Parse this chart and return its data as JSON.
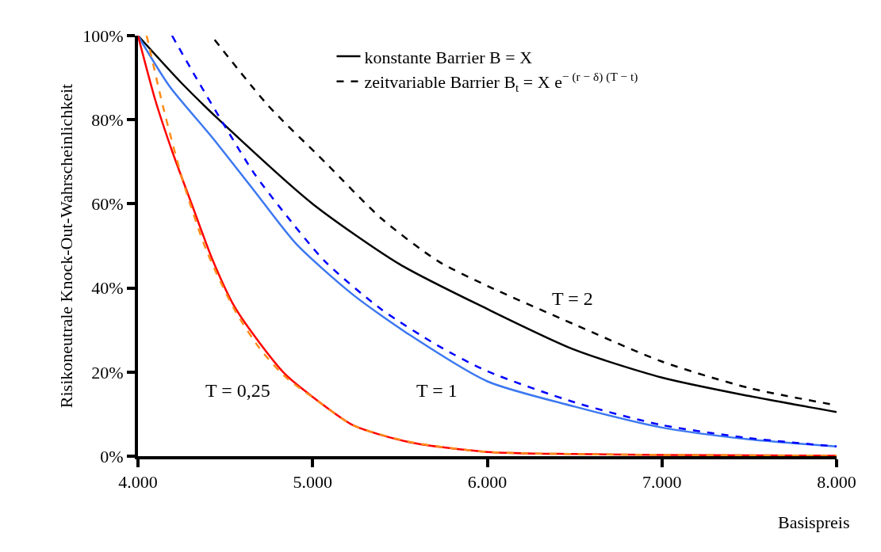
{
  "chart_data": {
    "type": "line",
    "xlabel": "Basispreis",
    "ylabel": "Risikoneutrale Knock-Out-Wahrscheinlichkeit",
    "xlim": [
      4000,
      8000
    ],
    "xticks": [
      {
        "value": 4000,
        "label": "4.000"
      },
      {
        "value": 5000,
        "label": "5.000"
      },
      {
        "value": 6000,
        "label": "6.000"
      },
      {
        "value": 7000,
        "label": "7.000"
      },
      {
        "value": 8000,
        "label": "8.000"
      }
    ],
    "ylim": [
      0,
      100
    ],
    "yticks": [
      {
        "value": 0,
        "label": "0%"
      },
      {
        "value": 20,
        "label": "20%"
      },
      {
        "value": 40,
        "label": "40%"
      },
      {
        "value": 60,
        "label": "60%"
      },
      {
        "value": 80,
        "label": "80%"
      },
      {
        "value": 100,
        "label": "100%"
      }
    ],
    "grid": false,
    "legend": "top",
    "marker": "none",
    "series": [
      {
        "name": "konstante Barrier B = X",
        "color": "#000000",
        "line_style": "solid",
        "x": [
          4000,
          4250,
          4500,
          5000,
          5500,
          6000,
          6500,
          7000,
          7500,
          8000
        ],
        "values": [
          100,
          88.7,
          78.6,
          60,
          45.6,
          35,
          25.3,
          18.7,
          14.3,
          10.5
        ]
      },
      {
        "name": "zeitvariable Barrier B$_{t}$ = X e$^{− (r − δ) (T − t)}$",
        "color": "#000000",
        "line_style": "dashed",
        "x": [
          4439,
          4747,
          5071,
          5394,
          5721,
          6000,
          6500,
          7000,
          7500,
          8000
        ],
        "values": [
          99,
          83.3,
          69.9,
          56.5,
          46.3,
          40.5,
          31.3,
          22.5,
          16.2,
          12.1
        ]
      },
      {
        "color": "#3c78f0",
        "line_style": "solid",
        "x": [
          4000,
          4180,
          4423,
          4666,
          4908,
          5234,
          5557,
          6000,
          6500,
          7000,
          7500,
          8000
        ],
        "values": [
          100,
          88,
          75.9,
          63.1,
          50.4,
          38.3,
          28.8,
          17.8,
          11.8,
          6.8,
          4,
          2.3
        ]
      },
      {
        "color": "#0000ff",
        "line_style": "dashed",
        "x": [
          4195,
          4341,
          4504,
          4666,
          4827,
          5071,
          5394,
          5721,
          6000,
          6500,
          7000,
          7500,
          8000
        ],
        "values": [
          100,
          89.4,
          78,
          67.2,
          58.4,
          46.3,
          34.9,
          26.2,
          20.2,
          12.8,
          7.4,
          4.3,
          2.3
        ]
      },
      {
        "color": "#ff0000",
        "line_style": "solid",
        "x": [
          4000,
          4099,
          4195,
          4309,
          4423,
          4552,
          4699,
          4845,
          5000,
          5234,
          5557,
          6000,
          6500,
          7000,
          8000
        ],
        "values": [
          100,
          84.7,
          72.6,
          59.8,
          47.1,
          35.6,
          26.8,
          19.4,
          14.1,
          7.3,
          3.3,
          1,
          0.5,
          0.3,
          0.1
        ]
      },
      {
        "color": "#ff8c1a",
        "line_style": "dashed",
        "x": [
          4050,
          4146,
          4259,
          4391,
          4552,
          4699,
          4845,
          5000,
          5234,
          5557,
          6000,
          6500,
          7000,
          8000
        ],
        "values": [
          100,
          82.7,
          65.2,
          49,
          34.9,
          25.5,
          18.8,
          14,
          7.3,
          3.4,
          1,
          0.5,
          0.3,
          0.1
        ]
      }
    ],
    "annotations": [
      "T = 0,25",
      "T = 1",
      "T = 2"
    ]
  }
}
